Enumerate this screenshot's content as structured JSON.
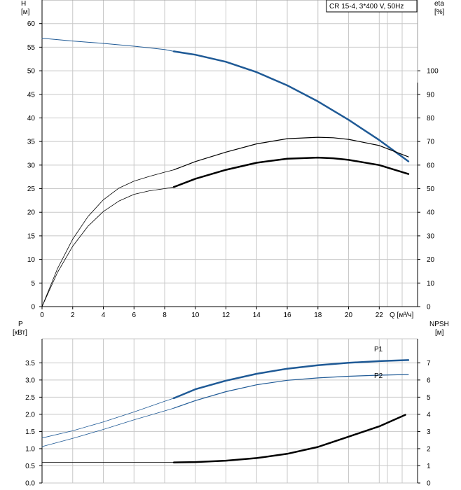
{
  "colors": {
    "grid": "#c8c8c8",
    "axis": "#000000",
    "blue": "#1f5a96",
    "black": "#000000"
  },
  "chart_data": [
    {
      "type": "line",
      "title": "CR 15-4, 3*400 V, 50Hz",
      "xlabel": "Q [м³/ч]",
      "ylabel_line1": "H",
      "ylabel_line2": "[м]",
      "y2label_line1": "eta",
      "y2label_line2": "[%]",
      "xlim": [
        0,
        24.5
      ],
      "ylim": [
        0,
        65
      ],
      "y2lim": [
        0,
        130
      ],
      "grid": true,
      "x_ticks": [
        0,
        2,
        4,
        6,
        8,
        10,
        12,
        14,
        16,
        18,
        20,
        22
      ],
      "y_ticks": [
        0,
        5,
        10,
        15,
        20,
        25,
        30,
        35,
        40,
        45,
        50,
        55,
        60
      ],
      "y2_ticks": [
        0,
        10,
        20,
        30,
        40,
        50,
        60,
        70,
        80,
        90,
        100
      ],
      "series": [
        {
          "axis": "left",
          "color": "#1f5a96",
          "width": 1,
          "x": [
            0,
            2,
            4,
            6,
            8,
            8.6
          ],
          "y": [
            56.9,
            56.3,
            55.8,
            55.2,
            54.5,
            54.1
          ]
        },
        {
          "axis": "left",
          "color": "#1f5a96",
          "width": 2.5,
          "x": [
            8.6,
            10,
            12,
            14,
            16,
            18,
            20,
            22,
            23.9
          ],
          "y": [
            54.1,
            53.4,
            51.9,
            49.7,
            46.9,
            43.5,
            39.6,
            35.3,
            30.8
          ]
        },
        {
          "axis": "right",
          "color": "#000000",
          "width": 0.8,
          "x": [
            0,
            1,
            2,
            3,
            4,
            5,
            6,
            7,
            8,
            8.6
          ],
          "y": [
            0,
            16,
            28.6,
            38.2,
            45.3,
            50.2,
            53.2,
            55.2,
            57,
            58
          ]
        },
        {
          "axis": "right",
          "color": "#000000",
          "width": 1.2,
          "x": [
            8.6,
            10,
            12,
            14,
            16,
            18,
            19,
            20,
            22,
            23.9
          ],
          "y": [
            58,
            61.5,
            65.5,
            69,
            71.2,
            71.8,
            71.6,
            70.9,
            68.3,
            63.5
          ]
        },
        {
          "axis": "right",
          "color": "#000000",
          "width": 0.8,
          "x": [
            0,
            1,
            2,
            3,
            4,
            5,
            6,
            7,
            8,
            8.6
          ],
          "y": [
            0,
            14.4,
            25.6,
            34.1,
            40.3,
            44.7,
            47.6,
            49.1,
            50,
            50.7
          ]
        },
        {
          "axis": "right",
          "color": "#000000",
          "width": 2.5,
          "x": [
            8.6,
            10,
            12,
            14,
            16,
            18,
            19,
            20,
            22,
            23.9
          ],
          "y": [
            50.7,
            54.2,
            58,
            61,
            62.7,
            63.2,
            62.9,
            62.2,
            60,
            56.2
          ]
        }
      ]
    },
    {
      "type": "line",
      "ylabel_line1": "P",
      "ylabel_line2": "[кВт]",
      "y2label_line1": "NPSH",
      "y2label_line2": "[м]",
      "xlim": [
        0,
        24.5
      ],
      "ylim": [
        0,
        4.2
      ],
      "y2lim": [
        0,
        8.4
      ],
      "grid": true,
      "y_ticks": [
        0,
        0.5,
        1,
        1.5,
        2,
        2.5,
        3,
        3.5
      ],
      "y_tick_labels": [
        "0.0",
        "0.5",
        "1.0",
        "1.5",
        "2.0",
        "2.5",
        "3.0",
        "3.5"
      ],
      "y2_ticks": [
        0,
        1,
        2,
        3,
        4,
        5,
        6,
        7
      ],
      "series": [
        {
          "name": "P1",
          "axis": "left",
          "color": "#1f5a96",
          "width": 0.8,
          "x": [
            0,
            2,
            4,
            6,
            8,
            8.6
          ],
          "y": [
            1.31,
            1.52,
            1.78,
            2.07,
            2.38,
            2.47
          ]
        },
        {
          "name": "P1",
          "axis": "left",
          "color": "#1f5a96",
          "width": 2.5,
          "x": [
            8.6,
            10,
            12,
            14,
            16,
            18,
            20,
            22,
            23.9
          ],
          "y": [
            2.47,
            2.73,
            2.98,
            3.18,
            3.33,
            3.43,
            3.5,
            3.55,
            3.58
          ]
        },
        {
          "name": "P2",
          "axis": "left",
          "color": "#1f5a96",
          "width": 0.8,
          "x": [
            0,
            2,
            4,
            6,
            8,
            8.6
          ],
          "y": [
            1.06,
            1.3,
            1.56,
            1.84,
            2.1,
            2.18
          ]
        },
        {
          "name": "P2",
          "axis": "left",
          "color": "#1f5a96",
          "width": 1.2,
          "x": [
            8.6,
            10,
            12,
            14,
            16,
            18,
            20,
            22,
            23.9
          ],
          "y": [
            2.18,
            2.4,
            2.66,
            2.86,
            2.99,
            3.06,
            3.11,
            3.14,
            3.16
          ]
        },
        {
          "axis": "right",
          "color": "#000000",
          "width": 0.8,
          "x": [
            0,
            2,
            4,
            6,
            8,
            8.6
          ],
          "y": [
            1.2,
            1.2,
            1.2,
            1.2,
            1.2,
            1.2
          ]
        },
        {
          "axis": "right",
          "color": "#000000",
          "width": 2.5,
          "x": [
            8.6,
            10,
            12,
            14,
            16,
            18,
            20,
            22,
            23.7
          ],
          "y": [
            1.2,
            1.22,
            1.3,
            1.45,
            1.7,
            2.1,
            2.7,
            3.3,
            3.97
          ]
        }
      ],
      "labels": [
        "P1",
        "P2"
      ]
    }
  ]
}
